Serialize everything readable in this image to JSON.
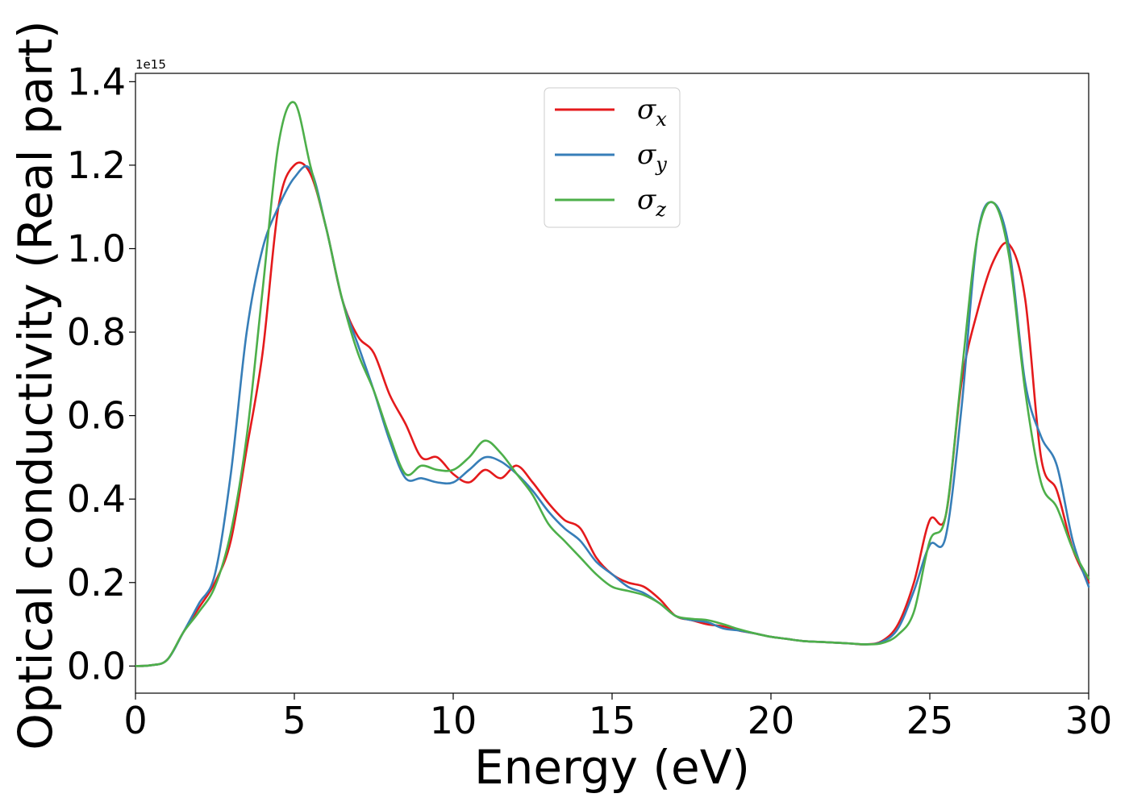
{
  "chart_data": {
    "type": "line",
    "title": "",
    "xlabel": "Energy (eV)",
    "ylabel": "Optical conductivity (Real part)",
    "y_offset_label": "1e15",
    "xlim": [
      0,
      30
    ],
    "ylim": [
      -0.065,
      1.42
    ],
    "xticks": [
      0,
      5,
      10,
      15,
      20,
      25,
      30
    ],
    "xtick_labels": [
      "0",
      "5",
      "10",
      "15",
      "20",
      "25",
      "30"
    ],
    "yticks": [
      0.0,
      0.2,
      0.4,
      0.6,
      0.8,
      1.0,
      1.2,
      1.4
    ],
    "ytick_labels": [
      "0.0",
      "0.2",
      "0.4",
      "0.6",
      "0.8",
      "1.0",
      "1.2",
      "1.4"
    ],
    "grid": false,
    "legend_position": "top-center",
    "series": [
      {
        "name": "σx",
        "legend_symbol": "σ",
        "legend_sub": "x",
        "color": "#e41a1c",
        "x": [
          0,
          0.5,
          1,
          1.5,
          2,
          2.5,
          3,
          3.5,
          4,
          4.5,
          5,
          5.5,
          6,
          6.5,
          7,
          7.5,
          8,
          8.5,
          9,
          9.5,
          10,
          10.5,
          11,
          11.5,
          12,
          12.5,
          13,
          13.5,
          14,
          14.5,
          15,
          15.5,
          16,
          16.5,
          17,
          17.5,
          18,
          18.5,
          19,
          19.5,
          20,
          20.5,
          21,
          21.5,
          22,
          22.5,
          23,
          23.5,
          24,
          24.5,
          25,
          25.5,
          26,
          26.5,
          27,
          27.5,
          28,
          28.5,
          29,
          29.5,
          30
        ],
        "y": [
          0,
          0.002,
          0.015,
          0.08,
          0.14,
          0.2,
          0.3,
          0.52,
          0.75,
          1.1,
          1.2,
          1.18,
          1.05,
          0.88,
          0.79,
          0.75,
          0.65,
          0.58,
          0.5,
          0.5,
          0.46,
          0.44,
          0.47,
          0.45,
          0.48,
          0.44,
          0.39,
          0.35,
          0.33,
          0.26,
          0.22,
          0.2,
          0.19,
          0.16,
          0.12,
          0.11,
          0.1,
          0.095,
          0.085,
          0.078,
          0.07,
          0.065,
          0.06,
          0.058,
          0.056,
          0.054,
          0.052,
          0.06,
          0.1,
          0.2,
          0.35,
          0.36,
          0.68,
          0.85,
          0.97,
          1.01,
          0.88,
          0.5,
          0.42,
          0.28,
          0.2
        ]
      },
      {
        "name": "σy",
        "legend_symbol": "σ",
        "legend_sub": "y",
        "color": "#377eb8",
        "x": [
          0,
          0.5,
          1,
          1.5,
          2,
          2.5,
          3,
          3.5,
          4,
          4.5,
          5,
          5.5,
          6,
          6.5,
          7,
          7.5,
          8,
          8.5,
          9,
          9.5,
          10,
          10.5,
          11,
          11.5,
          12,
          12.5,
          13,
          13.5,
          14,
          14.5,
          15,
          15.5,
          16,
          16.5,
          17,
          17.5,
          18,
          18.5,
          19,
          19.5,
          20,
          20.5,
          21,
          21.5,
          22,
          22.5,
          23,
          23.5,
          24,
          24.5,
          25,
          25.5,
          26,
          26.5,
          27,
          27.5,
          28,
          28.5,
          29,
          29.5,
          30
        ],
        "y": [
          0,
          0.002,
          0.015,
          0.08,
          0.15,
          0.22,
          0.46,
          0.8,
          1.0,
          1.1,
          1.17,
          1.19,
          1.05,
          0.88,
          0.77,
          0.66,
          0.54,
          0.45,
          0.45,
          0.44,
          0.44,
          0.47,
          0.5,
          0.49,
          0.46,
          0.42,
          0.37,
          0.33,
          0.3,
          0.25,
          0.22,
          0.19,
          0.175,
          0.15,
          0.12,
          0.11,
          0.105,
          0.09,
          0.085,
          0.078,
          0.07,
          0.065,
          0.06,
          0.058,
          0.056,
          0.054,
          0.052,
          0.058,
          0.09,
          0.18,
          0.29,
          0.31,
          0.62,
          1.03,
          1.11,
          1.0,
          0.68,
          0.55,
          0.48,
          0.3,
          0.19
        ]
      },
      {
        "name": "σz",
        "legend_symbol": "σ",
        "legend_sub": "z",
        "color": "#4daf4a",
        "x": [
          0,
          0.5,
          1,
          1.5,
          2,
          2.5,
          3,
          3.5,
          4,
          4.5,
          5,
          5.5,
          6,
          6.5,
          7,
          7.5,
          8,
          8.5,
          9,
          9.5,
          10,
          10.5,
          11,
          11.5,
          12,
          12.5,
          13,
          13.5,
          14,
          14.5,
          15,
          15.5,
          16,
          16.5,
          17,
          17.5,
          18,
          18.5,
          19,
          19.5,
          20,
          20.5,
          21,
          21.5,
          22,
          22.5,
          23,
          23.5,
          24,
          24.5,
          25,
          25.5,
          26,
          26.5,
          27,
          27.5,
          28,
          28.5,
          29,
          29.5,
          30
        ],
        "y": [
          0,
          0.002,
          0.015,
          0.08,
          0.13,
          0.19,
          0.32,
          0.55,
          0.9,
          1.25,
          1.35,
          1.2,
          1.05,
          0.88,
          0.75,
          0.66,
          0.55,
          0.46,
          0.48,
          0.47,
          0.47,
          0.5,
          0.54,
          0.51,
          0.46,
          0.41,
          0.34,
          0.3,
          0.26,
          0.22,
          0.19,
          0.18,
          0.17,
          0.15,
          0.12,
          0.113,
          0.11,
          0.1,
          0.088,
          0.078,
          0.07,
          0.065,
          0.06,
          0.058,
          0.056,
          0.054,
          0.052,
          0.055,
          0.075,
          0.13,
          0.3,
          0.36,
          0.7,
          1.03,
          1.11,
          0.98,
          0.66,
          0.44,
          0.38,
          0.28,
          0.21
        ]
      }
    ]
  }
}
